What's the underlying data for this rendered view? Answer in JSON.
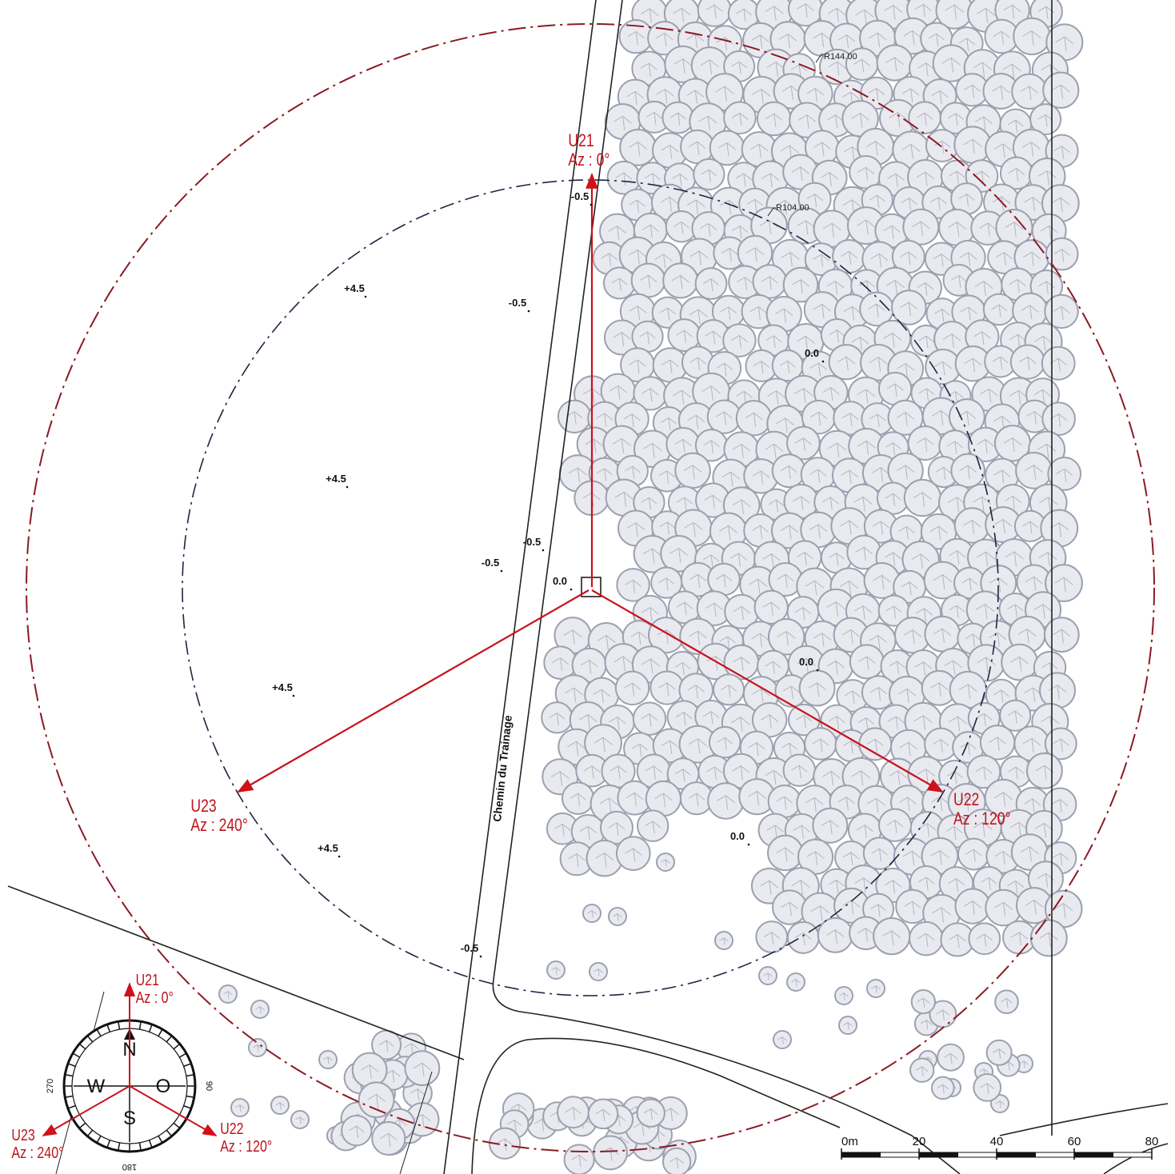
{
  "map": {
    "road_name": "Chemin du Trainage",
    "radii": [
      "R144.00",
      "R104.00"
    ],
    "turbines": [
      {
        "name": "U21",
        "azimuth": "Az : 0°"
      },
      {
        "name": "U22",
        "azimuth": "Az : 120°"
      },
      {
        "name": "U23",
        "azimuth": "Az : 240°"
      }
    ],
    "elevations": [
      "+4.5",
      "+4.5",
      "+4.5",
      "+4.5",
      "-0.5",
      "-0.5",
      "-0.5",
      "-0.5",
      "-0.5",
      "0.0",
      "0.0",
      "0.0",
      "0.0"
    ],
    "compass": {
      "north": "N",
      "west": "W",
      "east": "O",
      "south": "S",
      "deg_west": "270",
      "deg_east": "90",
      "deg_south": "180"
    },
    "scale": [
      "0m",
      "20",
      "40",
      "60",
      "80"
    ]
  }
}
